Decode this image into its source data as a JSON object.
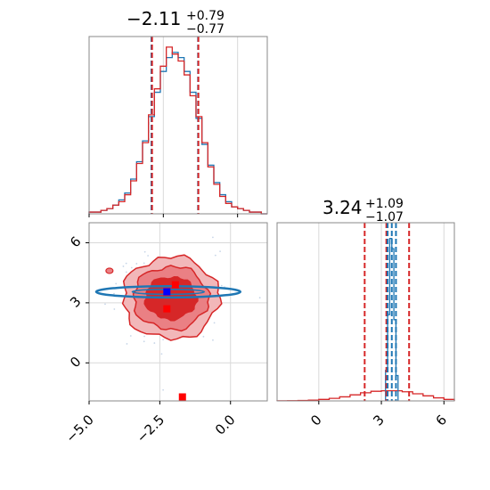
{
  "chart_data": [
    {
      "type": "histogram",
      "panel": "top-left",
      "title": {
        "value": "−2.11",
        "plus": "+0.79",
        "minus": "−0.77"
      },
      "xlim": [
        -5.0,
        1.0
      ],
      "grid": true,
      "quantile_lines": {
        "red": [
          -2.88,
          -1.32
        ],
        "blue": [
          -2.9,
          -1.33
        ]
      },
      "bins": [
        -5.0,
        -4.8,
        -4.6,
        -4.4,
        -4.2,
        -4.0,
        -3.8,
        -3.6,
        -3.4,
        -3.2,
        -3.0,
        -2.8,
        -2.6,
        -2.4,
        -2.2,
        -2.0,
        -1.8,
        -1.6,
        -1.4,
        -1.2,
        -1.0,
        -0.8,
        -0.6,
        -0.4,
        -0.2,
        0.0,
        0.2,
        0.4,
        0.6,
        0.8,
        1.0
      ],
      "series": [
        {
          "color": "#1f77b4",
          "values": [
            0.01,
            0.01,
            0.02,
            0.03,
            0.05,
            0.08,
            0.12,
            0.2,
            0.3,
            0.42,
            0.56,
            0.7,
            0.82,
            0.9,
            0.93,
            0.9,
            0.82,
            0.7,
            0.55,
            0.4,
            0.28,
            0.18,
            0.11,
            0.07,
            0.04,
            0.03,
            0.02,
            0.01,
            0.01,
            0.0
          ]
        },
        {
          "color": "#d62728",
          "values": [
            0.01,
            0.01,
            0.02,
            0.03,
            0.05,
            0.07,
            0.11,
            0.19,
            0.29,
            0.41,
            0.57,
            0.72,
            0.85,
            0.96,
            0.92,
            0.88,
            0.8,
            0.68,
            0.56,
            0.41,
            0.27,
            0.17,
            0.1,
            0.06,
            0.04,
            0.03,
            0.02,
            0.01,
            0.01,
            0.0
          ]
        }
      ]
    },
    {
      "type": "histogram",
      "panel": "bottom-right",
      "title": {
        "value": "3.24",
        "plus": "+1.09",
        "minus": "−1.07"
      },
      "xlim": [
        -2.0,
        6.5
      ],
      "xticks": [
        "0",
        "3",
        "6"
      ],
      "xtick_values": [
        0,
        3,
        6
      ],
      "grid": true,
      "quantile_lines": {
        "red": [
          2.2,
          3.24,
          4.33
        ],
        "blue": [
          3.3,
          3.5,
          3.7
        ]
      },
      "series": [
        {
          "color": "#d62728",
          "label_none": true,
          "bins": [
            -2.0,
            -1.5,
            -1.0,
            -0.5,
            0.0,
            0.5,
            1.0,
            1.5,
            2.0,
            2.5,
            3.0,
            3.5,
            4.0,
            4.5,
            5.0,
            5.5,
            6.0,
            6.5
          ],
          "values": [
            0.002,
            0.004,
            0.008,
            0.015,
            0.03,
            0.05,
            0.08,
            0.12,
            0.16,
            0.19,
            0.2,
            0.2,
            0.18,
            0.14,
            0.1,
            0.06,
            0.03
          ]
        },
        {
          "color": "#1f77b4",
          "bins": [
            3.2,
            3.3,
            3.4,
            3.5,
            3.6,
            3.7,
            3.8
          ],
          "values": [
            0.6,
            1.7,
            3.2,
            3.0,
            1.6,
            0.5
          ]
        }
      ]
    },
    {
      "type": "contour",
      "panel": "bottom-left",
      "xlim": [
        -5.0,
        1.3
      ],
      "ylim": [
        -1.9,
        7.0
      ],
      "xticks": [
        "−5.0",
        "−2.5",
        "0.0"
      ],
      "xtick_values": [
        -5.0,
        -2.5,
        0.0
      ],
      "yticks": [
        "0",
        "3",
        "6"
      ],
      "ytick_values": [
        0,
        3,
        6
      ],
      "grid": true,
      "red_contours": {
        "center": [
          -2.11,
          3.24
        ],
        "levels_sigma": [
          [
            0.85,
            1.0
          ],
          [
            1.25,
            1.5
          ],
          [
            1.6,
            1.95
          ]
        ],
        "colors": [
          "#d62728",
          "#ea8084",
          "#f2b7b9"
        ]
      },
      "blue_ellipse": {
        "center": [
          -2.2,
          3.55
        ],
        "rx": 2.55,
        "ry": 0.28,
        "color": "#1f77b4"
      },
      "red_markers": [
        [
          -1.95,
          3.9
        ],
        [
          -2.25,
          2.7
        ],
        [
          -1.7,
          -1.7
        ]
      ],
      "blue_marker": [
        -2.25,
        3.55
      ]
    }
  ]
}
